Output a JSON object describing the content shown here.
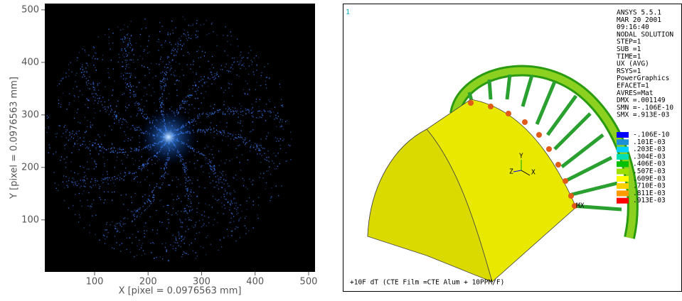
{
  "plot": {
    "x_label": "X [pixel =  0.0976563 mm]",
    "y_label": "Y [pixel =  0.0976563 mm]",
    "xlim": [
      7,
      512
    ],
    "ylim": [
      1,
      512
    ],
    "xticks": [
      100,
      200,
      300,
      400,
      500
    ],
    "yticks": [
      100,
      200,
      300,
      400,
      500
    ]
  },
  "ansys": {
    "viewport": "1",
    "info": [
      "ANSYS 5.5.1",
      "MAR 20 2001",
      "09:16:40",
      "NODAL SOLUTION",
      "STEP=1",
      "SUB =1",
      "TIME=1",
      "UX        (AVG)",
      "RSYS=1",
      "PowerGraphics",
      "EFACET=1",
      "AVRES=Mat",
      "DMX =.001149",
      "SMN =-.106E-10",
      "SMX =.913E-03"
    ],
    "legend": [
      {
        "label": "-.106E-10",
        "color": "#0000ff"
      },
      {
        "label": ".101E-03",
        "color": "#1e90d8"
      },
      {
        "label": ".203E-03",
        "color": "#00d0ff"
      },
      {
        "label": ".304E-03",
        "color": "#00e0b0"
      },
      {
        "label": ".406E-03",
        "color": "#00c000"
      },
      {
        "label": ".507E-03",
        "color": "#a0e000"
      },
      {
        "label": ".609E-03",
        "color": "#ffff00"
      },
      {
        "label": ".710E-03",
        "color": "#ffd000"
      },
      {
        "label": ".811E-03",
        "color": "#ff9900"
      },
      {
        "label": ".913E-03",
        "color": "#ff0000"
      }
    ],
    "triad": {
      "x": "X",
      "y": "Y",
      "z": "Z"
    },
    "max_label": "MX",
    "footer": "+10F dT (CTE Film =CTE Alum + 10PPM/F)"
  }
}
